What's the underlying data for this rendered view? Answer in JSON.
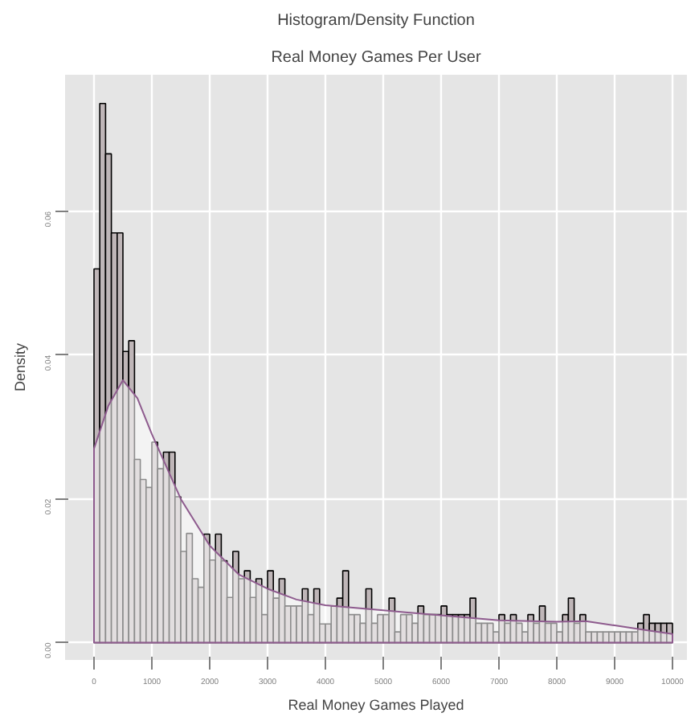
{
  "chart_data": {
    "type": "histogram",
    "title": "Histogram/Density Function",
    "subtitle": "Real Money Games Per User",
    "xlabel": "Real Money Games Played",
    "ylabel": "Density",
    "bins": [
      0,
      100,
      200,
      300,
      400,
      500,
      600,
      700,
      800,
      900,
      1000,
      1100,
      1200,
      1300,
      1400,
      1500,
      1600,
      1700,
      1800,
      1900,
      2000,
      2100,
      2200,
      2300,
      2400,
      2500,
      2600,
      2700,
      2800,
      2900,
      3000,
      3100,
      3200,
      3300,
      3400,
      3500,
      3600,
      3700,
      3800,
      3900,
      4000,
      4100,
      4200,
      4300,
      4400,
      4500,
      4600,
      4700,
      4800,
      4900,
      5000,
      5100,
      5200,
      5300,
      5400,
      5500,
      5600,
      5700,
      5800,
      5900,
      6000,
      6100,
      6200,
      6300,
      6400,
      6500,
      6600,
      6700,
      6800,
      6900,
      7000,
      7100,
      7200,
      7300,
      7400,
      7500,
      7600,
      7700,
      7800,
      7900,
      8000,
      8100,
      8200,
      8300,
      8400,
      8500,
      8600,
      8700,
      8800,
      8900,
      9000,
      9100,
      9200,
      9300,
      9400,
      9500,
      9600,
      9700,
      9800,
      9900,
      10000
    ],
    "values": [
      0.052,
      0.075,
      0.068,
      0.057,
      0.057,
      0.0405,
      0.042,
      0.0255,
      0.0227,
      0.0216,
      0.0279,
      0.0242,
      0.0265,
      0.0265,
      0.0203,
      0.0127,
      0.0152,
      0.0089,
      0.0077,
      0.0151,
      0.0115,
      0.0151,
      0.0114,
      0.0063,
      0.0127,
      0.0089,
      0.01,
      0.0063,
      0.0089,
      0.0039,
      0.01,
      0.0062,
      0.0089,
      0.0051,
      0.0051,
      0.0051,
      0.0075,
      0.0039,
      0.0075,
      0.0026,
      0.0026,
      0.0051,
      0.0062,
      0.01,
      0.0039,
      0.0039,
      0.0027,
      0.0075,
      0.0027,
      0.0039,
      0.0039,
      0.0062,
      0.0015,
      0.0039,
      0.0039,
      0.0027,
      0.0051,
      0.0039,
      0.0039,
      0.0039,
      0.0051,
      0.0039,
      0.0039,
      0.0039,
      0.0039,
      0.0062,
      0.0027,
      0.0027,
      0.0027,
      0.0015,
      0.0039,
      0.0027,
      0.0039,
      0.0027,
      0.0015,
      0.0039,
      0.0027,
      0.0051,
      0.0027,
      0.0027,
      0.0015,
      0.0039,
      0.0062,
      0.0027,
      0.0039,
      0.0015,
      0.0015,
      0.0015,
      0.0015,
      0.0015,
      0.0015,
      0.0015,
      0.0015,
      0.0015,
      0.0027,
      0.0039,
      0.0027,
      0.0027,
      0.0027,
      0.0027
    ],
    "color": "#bfb6b8",
    "series": [
      {
        "type": "area",
        "color": "#8e5b8e",
        "x": [
          0,
          250,
          500,
          750,
          1000,
          1500,
          2000,
          2500,
          3000,
          3500,
          4000,
          5000,
          6000,
          7000,
          8000,
          8500,
          9000,
          9500,
          10000
        ],
        "values": [
          0.027,
          0.033,
          0.0365,
          0.034,
          0.029,
          0.02,
          0.0135,
          0.0095,
          0.0075,
          0.006,
          0.0052,
          0.0045,
          0.0038,
          0.0031,
          0.0029,
          0.003,
          0.0024,
          0.0018,
          0.0012
        ]
      }
    ],
    "xlim": [
      -500,
      10250
    ],
    "ylim": [
      -0.0024,
      0.079
    ],
    "xticks": [
      0,
      1000,
      2000,
      3000,
      4000,
      5000,
      6000,
      7000,
      8000,
      9000,
      10000
    ],
    "yticks": [
      {
        "value": 0,
        "label": "0.00"
      },
      {
        "value": 0.02,
        "label": "0.02"
      },
      {
        "value": 0.04,
        "label": "0.04"
      },
      {
        "value": 0.06,
        "label": "0.06"
      }
    ],
    "grid": true
  }
}
